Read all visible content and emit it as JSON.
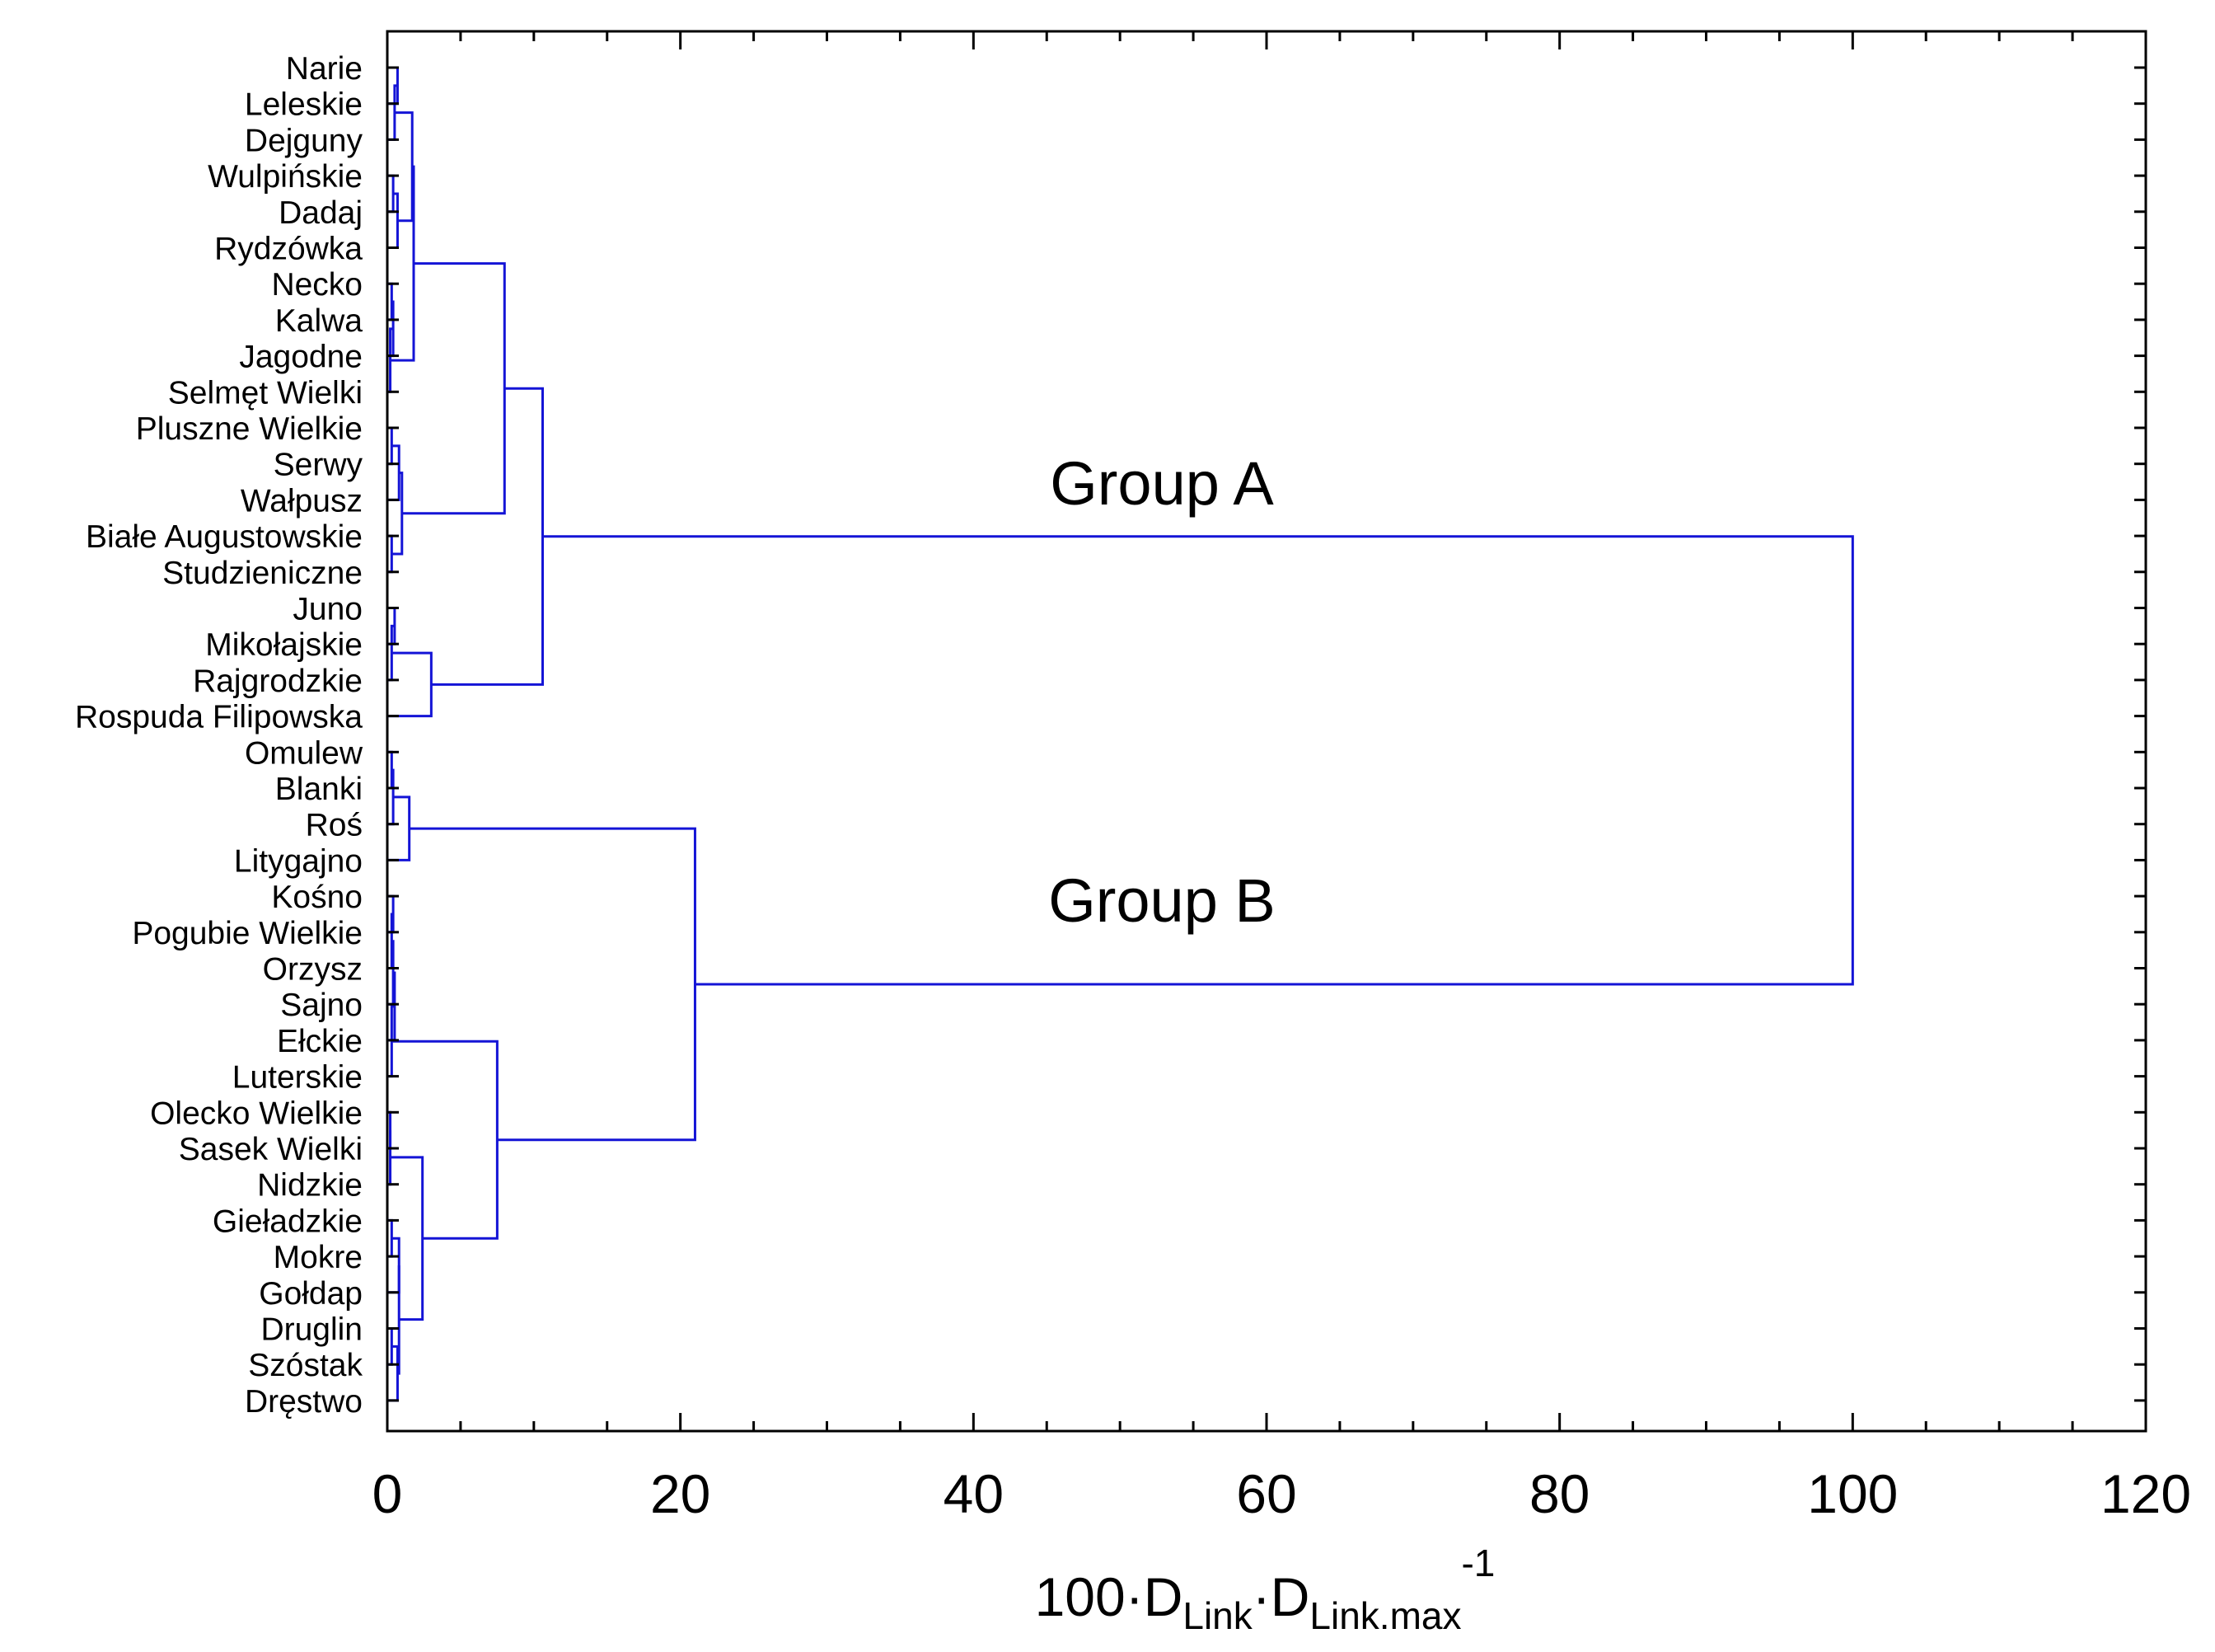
{
  "chart_data": {
    "type": "dendrogram",
    "orientation": "horizontal",
    "xlabel": {
      "base": "100·D",
      "sub1": "Link",
      "mid": "·D",
      "sub2": "Link.max",
      "sup": "-1"
    },
    "xlim": [
      0,
      120
    ],
    "xticks": [
      0,
      20,
      40,
      60,
      80,
      100,
      120
    ],
    "xtick_labels": [
      "0",
      "20",
      "40",
      "60",
      "80",
      "100",
      "120"
    ],
    "leaves": [
      "Narie",
      "Leleskie",
      "Dejguny",
      "Wulpińskie",
      "Dadaj",
      "Rydzówka",
      "Necko",
      "Kalwa",
      "Jagodne",
      "Selmęt Wielki",
      "Pluszne Wielkie",
      "Serwy",
      "Wałpusz",
      "Białe Augustowskie",
      "Studzieniczne",
      "Juno",
      "Mikołajskie",
      "Rajgrodzkie",
      "Rospuda Filipowska",
      "Omulew",
      "Blanki",
      "Roś",
      "Litygajno",
      "Kośno",
      "Pogubie Wielkie",
      "Orzysz",
      "Sajno",
      "Ełckie",
      "Luterskie",
      "Olecko Wielkie",
      "Sasek Wielki",
      "Nidzkie",
      "Gieładzkie",
      "Mokre",
      "Gołdap",
      "Druglin",
      "Szóstak",
      "Dręstwo"
    ],
    "merges": [
      {
        "a": 0,
        "b": 1,
        "h": 0.7
      },
      {
        "a": 2,
        "b": "m0",
        "h": 0.5
      },
      {
        "a": 3,
        "b": 4,
        "h": 0.4
      },
      {
        "a": "m2",
        "b": 5,
        "h": 0.7
      },
      {
        "a": "m1",
        "b": "m3",
        "h": 1.7
      },
      {
        "a": 6,
        "b": 7,
        "h": 0.3
      },
      {
        "a": "m5",
        "b": 8,
        "h": 0.4
      },
      {
        "a": "m6",
        "b": 9,
        "h": 0.2
      },
      {
        "a": "m4",
        "b": "m7",
        "h": 1.8
      },
      {
        "a": 10,
        "b": 11,
        "h": 0.3
      },
      {
        "a": "m9",
        "b": 12,
        "h": 0.8
      },
      {
        "a": 13,
        "b": 14,
        "h": 0.3
      },
      {
        "a": "m10",
        "b": "m11",
        "h": 1.0
      },
      {
        "a": "m8",
        "b": "m12",
        "h": 8.0
      },
      {
        "a": 15,
        "b": 16,
        "h": 0.5
      },
      {
        "a": "m14",
        "b": 17,
        "h": 0.3
      },
      {
        "a": "m15",
        "b": 18,
        "h": 3.0
      },
      {
        "a": "m13",
        "b": "m16",
        "h": 10.6
      },
      {
        "a": 19,
        "b": 20,
        "h": 0.3
      },
      {
        "a": "m18",
        "b": 21,
        "h": 0.4
      },
      {
        "a": "m19",
        "b": 22,
        "h": 1.5
      },
      {
        "a": 23,
        "b": 24,
        "h": 0.4
      },
      {
        "a": "m21",
        "b": 25,
        "h": 0.3
      },
      {
        "a": "m22",
        "b": 26,
        "h": 0.4
      },
      {
        "a": "m23",
        "b": 27,
        "h": 0.5
      },
      {
        "a": "m24",
        "b": 28,
        "h": 0.3
      },
      {
        "a": 29,
        "b": 30,
        "h": 0.2
      },
      {
        "a": "m26",
        "b": 31,
        "h": 0.2
      },
      {
        "a": 32,
        "b": 33,
        "h": 0.3
      },
      {
        "a": "m28",
        "b": 34,
        "h": 0.8
      },
      {
        "a": 35,
        "b": 36,
        "h": 0.3
      },
      {
        "a": "m30",
        "b": 37,
        "h": 0.7
      },
      {
        "a": "m29",
        "b": "m31",
        "h": 0.8
      },
      {
        "a": "m27",
        "b": "m32",
        "h": 2.4
      },
      {
        "a": "m25",
        "b": "m33",
        "h": 7.5
      },
      {
        "a": "m20",
        "b": "m34",
        "h": 21.0
      },
      {
        "a": "m17",
        "b": "m35",
        "h": 100.0
      }
    ],
    "annotations": [
      {
        "text": "Group A",
        "near_merge": "m17"
      },
      {
        "text": "Group B",
        "near_merge": "m35"
      }
    ],
    "colors": {
      "link": "#1414d6",
      "axis": "#000000"
    }
  }
}
